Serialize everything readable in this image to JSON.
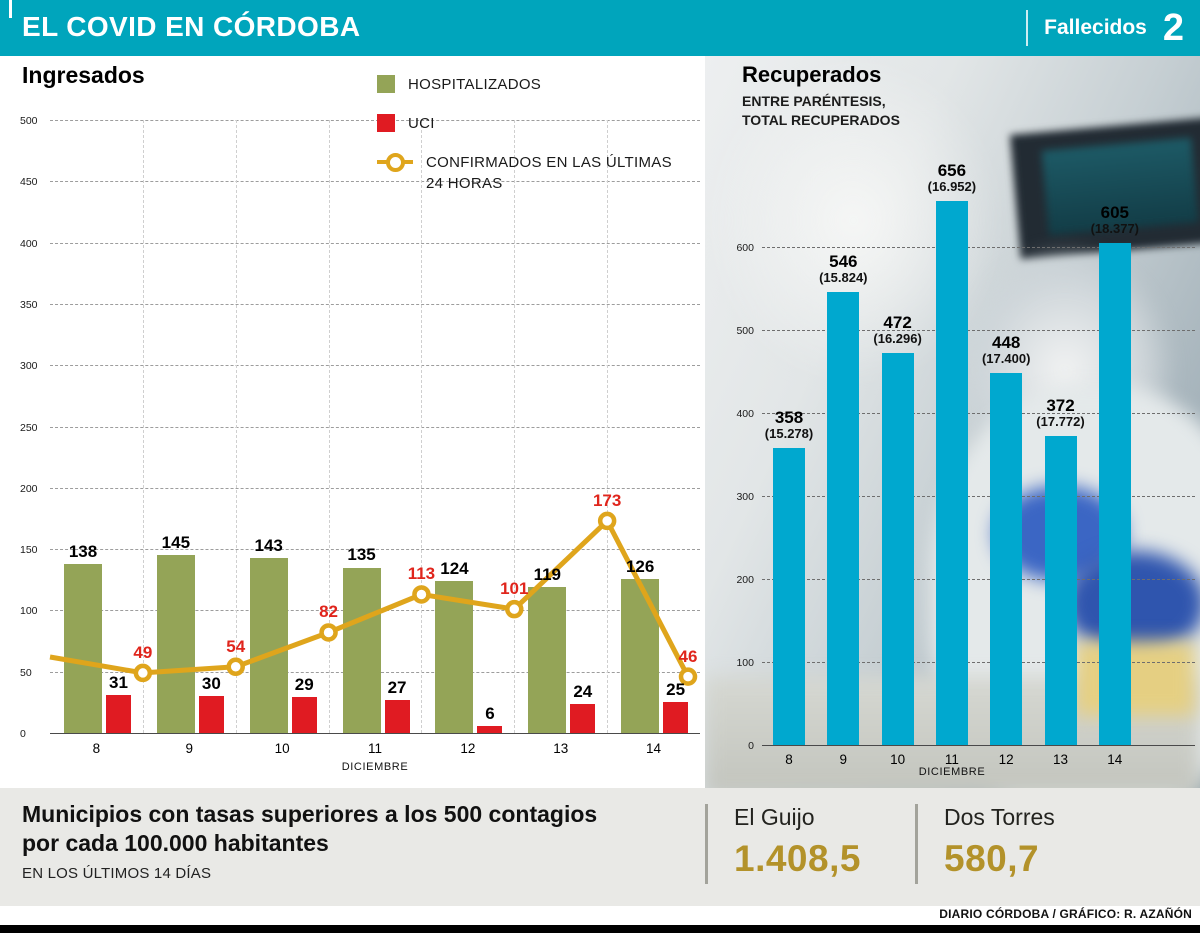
{
  "header": {
    "title": "EL COVID EN CÓRDOBA",
    "deaths_label": "Fallecidos",
    "deaths_value": "2"
  },
  "chart_data": [
    {
      "type": "bar",
      "title": "Ingresados",
      "categories": [
        "8",
        "9",
        "10",
        "11",
        "12",
        "13",
        "14"
      ],
      "xlabel": "DICIEMBRE",
      "ylim": [
        0,
        500
      ],
      "yticks": [
        0,
        50,
        100,
        150,
        200,
        250,
        300,
        350,
        400,
        450,
        500
      ],
      "grid": "dashed",
      "legend_position": "top",
      "series": [
        {
          "name": "HOSPITALIZADOS",
          "type": "bar",
          "color": "#94a457",
          "values": [
            138,
            145,
            143,
            135,
            124,
            119,
            126
          ]
        },
        {
          "name": "UCI",
          "type": "bar",
          "color": "#e01b22",
          "values": [
            31,
            30,
            29,
            27,
            6,
            24,
            25
          ]
        },
        {
          "name": "CONFIRMADOS EN LAS ÚLTIMAS 24 HORAS",
          "type": "line",
          "color": "#dfa51c",
          "values": [
            49,
            54,
            82,
            113,
            101,
            173,
            46
          ],
          "lead_in": 62,
          "label_color": "#e0251c"
        }
      ]
    },
    {
      "type": "bar",
      "title": "Recuperados",
      "subtitle_line1": "ENTRE PARÉNTESIS,",
      "subtitle_line2": "TOTAL RECUPERADOS",
      "categories": [
        "8",
        "9",
        "10",
        "11",
        "12",
        "13",
        "14"
      ],
      "xlabel": "DICIEMBRE",
      "ylim": [
        0,
        600
      ],
      "yticks": [
        0,
        100,
        200,
        300,
        400,
        500,
        600
      ],
      "grid": "dashed",
      "color": "#00a8cf",
      "values": [
        358,
        546,
        472,
        656,
        448,
        372,
        605
      ],
      "labels_secondary": [
        "(15.278)",
        "(15.824)",
        "(16.296)",
        "(16.952)",
        "(17.400)",
        "(17.772)",
        "(18.377)"
      ]
    }
  ],
  "bottom": {
    "title_line1": "Municipios con tasas superiores a los 500 contagios",
    "title_line2": "por cada 100.000 habitantes",
    "subtitle": "EN LOS ÚLTIMOS 14 DÍAS",
    "municipalities": [
      {
        "name": "El Guijo",
        "value": "1.408,5"
      },
      {
        "name": "Dos Torres",
        "value": "580,7"
      }
    ]
  },
  "footer": {
    "credit": "DIARIO CÓRDOBA / GRÁFICO: R. AZAÑÓN"
  },
  "colors": {
    "header_bg": "#00a5bc",
    "hospitalized_green": "#94a457",
    "uci_red": "#e01b22",
    "confirmed_yellow": "#dfa51c",
    "line_label_red": "#e0251c",
    "recovered_cyan": "#00a8cf",
    "gold_value": "#b3922a",
    "panel_gray": "#e9e9e6"
  }
}
